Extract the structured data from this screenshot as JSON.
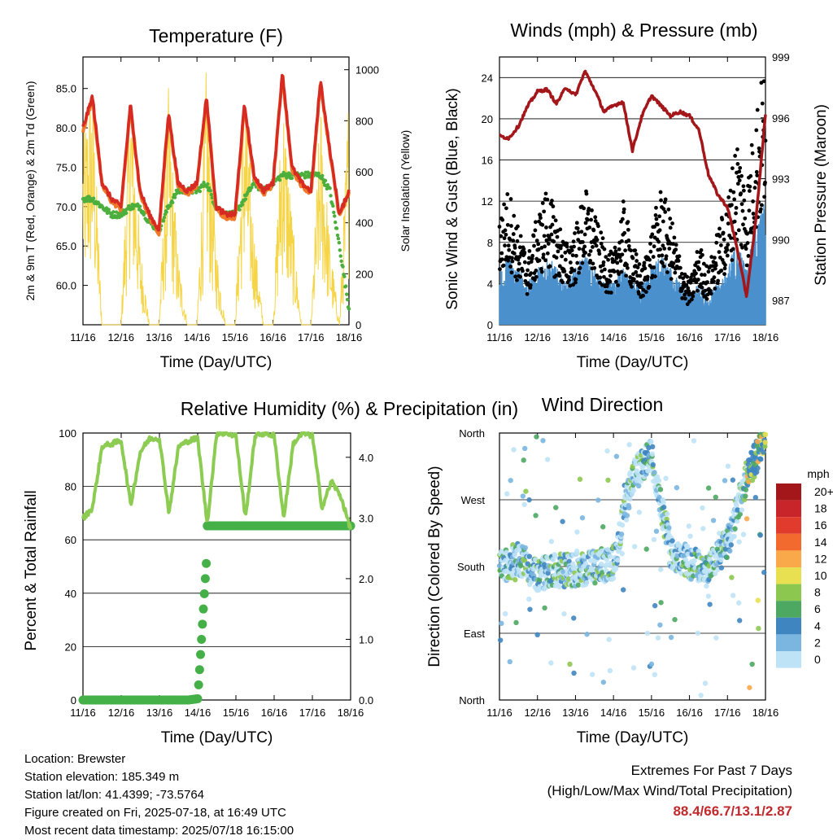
{
  "x_ticks": [
    "11/16",
    "12/16",
    "13/16",
    "14/16",
    "15/16",
    "16/16",
    "17/16",
    "18/16"
  ],
  "x_label": "Time (Day/UTC)",
  "panels": {
    "temperature": {
      "title": "Temperature (F)",
      "ylabel_left": "2m & 9m T (Red, Orange) & 2m Td (Green)",
      "ylabel_right": "Solar Insolation (Yellow)",
      "left_ticks": [
        "85.0",
        "80.0",
        "75.0",
        "70.0",
        "65.0",
        "60.0"
      ],
      "right_ticks": [
        "1000",
        "800",
        "600",
        "400",
        "200",
        "0"
      ]
    },
    "winds": {
      "title": "Winds (mph) & Pressure (mb)",
      "ylabel_left": "Sonic Wind & Gust (Blue, Black)",
      "ylabel_right": "Station Pressure (Maroon)",
      "left_ticks": [
        "24",
        "20",
        "16",
        "12",
        "8",
        "4",
        "0"
      ],
      "right_ticks": [
        "999",
        "996",
        "993",
        "990",
        "987"
      ]
    },
    "humidity": {
      "title": "Relative Humidity (%) & Precipitation (in)",
      "ylabel_left": "Percent & Total Rainfall",
      "left_ticks": [
        "100",
        "80",
        "60",
        "40",
        "20",
        "0"
      ],
      "right_ticks": [
        "4.0",
        "3.0",
        "2.0",
        "1.0",
        "0.0"
      ]
    },
    "direction": {
      "title": "Wind Direction",
      "ylabel_left": "Direction (Colored By Speed)",
      "left_ticks": [
        "North",
        "West",
        "South",
        "East",
        "North"
      ],
      "legend_title": "mph",
      "legend_labels": [
        "20+",
        "18",
        "16",
        "14",
        "12",
        "10",
        "8",
        "6",
        "4",
        "2",
        "0"
      ]
    }
  },
  "colors": {
    "temp_red": "#d62a22",
    "temp_orange": "#f07a2a",
    "dewpoint_green": "#4caf3c",
    "solar_yellow": "#f5d547",
    "wind_blue": "#4a90cc",
    "gust_black": "#000000",
    "pressure_maroon": "#a3161a",
    "rh_green": "#8ccc52",
    "rain_green": "#45b048",
    "legend_colors": [
      "#a3161a",
      "#c8252a",
      "#e03b2c",
      "#f26a2e",
      "#f9a84a",
      "#e8e050",
      "#8cc850",
      "#4da862",
      "#3f86c0",
      "#7bb6e0",
      "#bfe3f6"
    ]
  },
  "footer": {
    "location": "Location: Brewster",
    "elevation": "Station elevation: 185.349 m",
    "latlon": "Station lat/lon: 41.4399; -73.5764",
    "created": "Figure created on Fri, 2025-07-18, at 16:49 UTC",
    "recent": "Most recent data timestamp: 2025/07/18 16:15:00"
  },
  "extremes": {
    "line1": "Extremes For Past 7 Days",
    "line2": "(High/Low/Max Wind/Total Precipitation)",
    "values": "88.4/66.7/13.1/2.87"
  },
  "chart_data": [
    {
      "type": "line",
      "title": "Temperature (F)",
      "xlabel": "Time (Day/UTC)",
      "ylabel": "2m & 9m T (Red, Orange) & 2m Td (Green)",
      "ylabel_right": "Solar Insolation (Yellow)",
      "x_days": [
        0,
        0.25,
        0.5,
        0.75,
        1,
        1.25,
        1.5,
        1.75,
        2,
        2.25,
        2.5,
        2.75,
        3,
        3.25,
        3.5,
        3.75,
        4,
        4.25,
        4.5,
        4.75,
        5,
        5.25,
        5.5,
        5.75,
        6,
        6.25,
        6.5,
        6.75,
        7
      ],
      "ylim": [
        55,
        89
      ],
      "ylim_right": [
        0,
        1050
      ],
      "series": [
        {
          "name": "2m T",
          "values": [
            80,
            84,
            73,
            71,
            70,
            83,
            72,
            69,
            67,
            82,
            73,
            72,
            73,
            84,
            70,
            69,
            69,
            83,
            74,
            72,
            73,
            87,
            75,
            73,
            72,
            86,
            77,
            69,
            72
          ]
        },
        {
          "name": "9m T",
          "values": [
            80,
            84,
            73,
            71,
            70,
            83,
            72,
            69,
            67,
            82,
            73,
            72,
            73,
            84,
            70,
            69,
            69,
            83,
            74,
            72,
            73,
            87,
            75,
            73,
            72,
            86,
            77,
            69,
            72
          ]
        },
        {
          "name": "2m Td",
          "values": [
            71,
            71,
            70,
            69,
            69,
            70,
            70,
            68,
            67,
            70,
            72,
            72,
            72,
            73,
            70,
            69,
            69,
            71,
            73,
            72,
            73,
            74,
            74,
            74,
            74,
            74,
            72,
            65,
            57
          ]
        },
        {
          "name": "Solar Insolation",
          "values": [
            700,
            900,
            0,
            0,
            0,
            950,
            300,
            0,
            0,
            850,
            250,
            0,
            0,
            950,
            300,
            0,
            0,
            900,
            350,
            0,
            0,
            880,
            400,
            0,
            0,
            820,
            300,
            0,
            900
          ]
        }
      ]
    },
    {
      "type": "line",
      "title": "Winds (mph) & Pressure (mb)",
      "xlabel": "Time (Day/UTC)",
      "ylabel": "Sonic Wind & Gust (Blue, Black)",
      "ylabel_right": "Station Pressure (Maroon)",
      "x_days": [
        0,
        0.25,
        0.5,
        0.75,
        1,
        1.25,
        1.5,
        1.75,
        2,
        2.25,
        2.5,
        2.75,
        3,
        3.25,
        3.5,
        3.75,
        4,
        4.25,
        4.5,
        4.75,
        5,
        5.25,
        5.5,
        5.75,
        6,
        6.25,
        6.5,
        6.75,
        7
      ],
      "ylim": [
        0,
        26
      ],
      "ylim_right": [
        985.8,
        999
      ],
      "series": [
        {
          "name": "Sonic Wind",
          "values": [
            4,
            5,
            4,
            3,
            4,
            5,
            4,
            3,
            4,
            5,
            4,
            3,
            3,
            4,
            3,
            3,
            4,
            5,
            4,
            3,
            2,
            3,
            2,
            3,
            4,
            6,
            4,
            7,
            9
          ]
        },
        {
          "name": "Gust",
          "values": [
            8,
            10,
            7,
            5,
            8,
            10,
            8,
            6,
            7,
            10,
            8,
            6,
            5,
            9,
            6,
            4,
            7,
            10,
            8,
            5,
            3,
            6,
            4,
            7,
            9,
            14,
            10,
            16,
            19
          ]
        },
        {
          "name": "Station Pressure",
          "values": [
            995.1,
            995.0,
            995.6,
            996.6,
            997.3,
            997.4,
            996.7,
            997.5,
            997.1,
            998.3,
            997.4,
            996.3,
            996.6,
            996.8,
            994.4,
            996.1,
            997.1,
            996.6,
            996.1,
            996.3,
            996.1,
            995.4,
            993.2,
            992.2,
            991.6,
            989.6,
            987.2,
            991.0,
            996.2
          ]
        }
      ]
    },
    {
      "type": "line",
      "title": "Relative Humidity (%) & Precipitation (in)",
      "xlabel": "Time (Day/UTC)",
      "ylabel": "Percent & Total Rainfall",
      "ylim": [
        0,
        100
      ],
      "ylim_right": [
        0,
        4.4
      ],
      "x_days": [
        0,
        0.25,
        0.5,
        0.75,
        1,
        1.25,
        1.5,
        1.75,
        2,
        2.25,
        2.5,
        2.75,
        3,
        3.25,
        3.5,
        3.75,
        4,
        4.25,
        4.5,
        4.75,
        5,
        5.25,
        5.5,
        5.75,
        6,
        6.25,
        6.5,
        6.75,
        7
      ],
      "series": [
        {
          "name": "Relative Humidity",
          "values": [
            68,
            72,
            95,
            96,
            97,
            73,
            93,
            98,
            98,
            70,
            95,
            97,
            98,
            66,
            100,
            100,
            99,
            68,
            99,
            100,
            99,
            68,
            96,
            100,
            99,
            72,
            82,
            76,
            64
          ]
        },
        {
          "name": "Total Rainfall",
          "values": [
            0,
            0,
            0,
            0,
            0,
            0,
            0,
            0,
            0,
            0,
            0,
            0,
            0.02,
            2.87,
            2.87,
            2.87,
            2.87,
            2.87,
            2.87,
            2.87,
            2.87,
            2.87,
            2.87,
            2.87,
            2.87,
            2.87,
            2.87,
            2.87,
            2.87
          ]
        }
      ]
    },
    {
      "type": "scatter",
      "title": "Wind Direction",
      "xlabel": "Time (Day/UTC)",
      "ylabel": "Direction (Colored By Speed)",
      "y_categories": [
        "North",
        "West",
        "South",
        "East",
        "North"
      ],
      "ylim": [
        0,
        360
      ],
      "colorbar": {
        "title": "mph",
        "labels": [
          "20+",
          "18",
          "16",
          "14",
          "12",
          "10",
          "8",
          "6",
          "4",
          "2",
          "0"
        ]
      },
      "x_days": [
        0,
        0.5,
        1,
        1.5,
        2,
        2.5,
        3,
        3.5,
        4,
        4.5,
        5,
        5.5,
        6,
        6.5,
        7
      ],
      "series": [
        {
          "name": "Direction",
          "values": [
            180,
            190,
            170,
            175,
            175,
            180,
            185,
            300,
            330,
            200,
            185,
            175,
            210,
            300,
            355
          ]
        }
      ]
    }
  ]
}
